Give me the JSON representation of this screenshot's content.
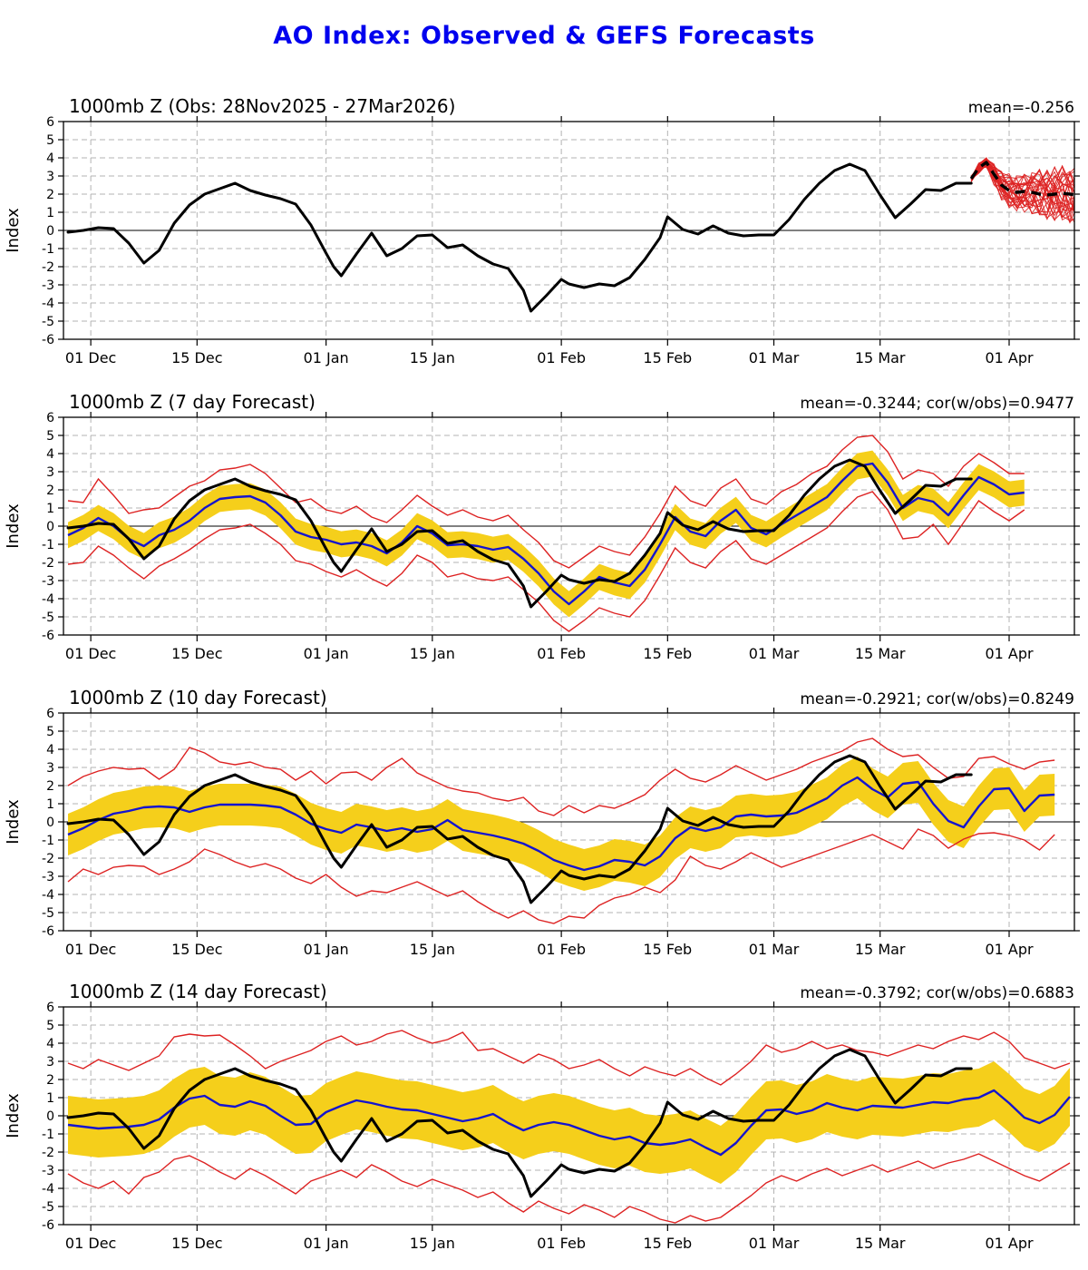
{
  "page_title": "AO Index: Observed & GEFS Forecasts",
  "colors": {
    "title": "#0000EE",
    "observed_line": "#000000",
    "ensemble_member_line": "#DD2222",
    "ensemble_mean_dashed": "#000000",
    "forecast_mean_line": "#1414CF",
    "envelope_line": "#DD2222",
    "spread_band_fill": "#F5CF1B",
    "grid": "#B3B3B3",
    "axis": "#000000"
  },
  "axes": {
    "y": {
      "label": "Index",
      "min": -6,
      "max": 6,
      "tick_step": 1
    },
    "x": {
      "domain_days": [
        -0.6,
        132.6
      ],
      "ticks": [
        {
          "day": 3,
          "label": "01 Dec"
        },
        {
          "day": 17,
          "label": "15 Dec"
        },
        {
          "day": 34,
          "label": "01 Jan"
        },
        {
          "day": 48,
          "label": "15 Jan"
        },
        {
          "day": 65,
          "label": "01 Feb"
        },
        {
          "day": 79,
          "label": "15 Feb"
        },
        {
          "day": 93,
          "label": "01 Mar"
        },
        {
          "day": 107,
          "label": "15 Mar"
        },
        {
          "day": 124,
          "label": "01 Apr"
        }
      ]
    }
  },
  "observed": {
    "days": [
      0,
      2,
      4,
      6,
      8,
      10,
      12,
      14,
      16,
      18,
      20,
      22,
      24,
      26,
      28,
      30,
      32,
      34,
      35,
      36,
      38,
      40,
      42,
      44,
      46,
      48,
      50,
      52,
      54,
      56,
      58,
      60,
      61,
      63,
      65,
      66,
      68,
      70,
      72,
      74,
      76,
      78,
      79,
      81,
      83,
      85,
      87,
      89,
      91,
      93,
      95,
      97,
      99,
      101,
      103,
      105,
      107,
      109,
      111,
      113,
      115,
      117,
      119
    ],
    "values": [
      -0.1,
      0.0,
      0.15,
      0.1,
      -0.7,
      -1.8,
      -1.1,
      0.4,
      1.4,
      2.0,
      2.3,
      2.6,
      2.2,
      1.95,
      1.75,
      1.45,
      0.3,
      -1.25,
      -2.0,
      -2.5,
      -1.3,
      -0.15,
      -1.4,
      -1.0,
      -0.3,
      -0.25,
      -0.95,
      -0.8,
      -1.4,
      -1.85,
      -2.1,
      -3.3,
      -4.45,
      -3.6,
      -2.7,
      -2.95,
      -3.15,
      -2.95,
      -3.05,
      -2.6,
      -1.6,
      -0.4,
      0.75,
      0.05,
      -0.2,
      0.25,
      -0.15,
      -0.3,
      -0.25,
      -0.25,
      0.6,
      1.7,
      2.6,
      3.3,
      3.65,
      3.3,
      1.95,
      0.7,
      1.45,
      2.25,
      2.2,
      2.6,
      2.6
    ]
  },
  "chart_data": [
    {
      "type": "line",
      "panel_id": "obs",
      "title": "1000mb Z (Obs: 28Nov2025 - 27Mar2026)",
      "annotation": "mean=-0.256",
      "show_observed": true,
      "ensemble": {
        "n_members": 30,
        "day_start": 119,
        "day_step": 1,
        "mean": [
          2.85,
          3.45,
          3.75,
          3.1,
          2.5,
          2.2,
          2.1,
          2.15,
          2.1,
          2.0,
          1.95,
          2.0,
          2.05,
          2.0,
          1.95,
          1.9,
          1.85
        ],
        "upper": [
          3.0,
          3.7,
          3.95,
          3.6,
          3.2,
          3.0,
          3.0,
          3.1,
          3.2,
          3.2,
          3.1,
          3.2,
          3.3,
          3.4,
          3.5,
          3.6,
          3.7
        ],
        "lower": [
          2.7,
          3.2,
          3.5,
          2.6,
          1.8,
          1.4,
          1.2,
          1.1,
          1.0,
          0.9,
          0.8,
          0.7,
          0.6,
          0.5,
          0.3,
          0.1,
          -0.3
        ]
      }
    },
    {
      "type": "line",
      "panel_id": "f7",
      "title": "1000mb Z (7 day Forecast)",
      "annotation": "mean=-0.3244; cor(w/obs)=0.9477",
      "show_observed": true,
      "forecast": {
        "day_start": 0,
        "day_step": 2,
        "yellow_halfwidth": 0.72,
        "mean": [
          -0.5,
          -0.1,
          0.45,
          0.0,
          -0.7,
          -1.1,
          -0.5,
          -0.2,
          0.3,
          1.0,
          1.5,
          1.6,
          1.65,
          1.3,
          0.6,
          -0.3,
          -0.6,
          -0.75,
          -1.0,
          -0.9,
          -1.1,
          -1.5,
          -0.9,
          0.0,
          -0.4,
          -1.05,
          -1.0,
          -1.1,
          -1.3,
          -1.15,
          -1.8,
          -2.6,
          -3.6,
          -4.3,
          -3.6,
          -2.8,
          -3.1,
          -3.3,
          -2.4,
          -1.0,
          0.5,
          -0.3,
          -0.55,
          0.3,
          0.9,
          -0.1,
          -0.45,
          0.1,
          0.6,
          1.1,
          1.6,
          2.5,
          3.3,
          3.45,
          2.4,
          1.0,
          1.55,
          1.35,
          0.6,
          1.7,
          2.7,
          2.3,
          1.75,
          1.85
        ],
        "red_upper": [
          1.4,
          1.3,
          2.6,
          1.7,
          0.7,
          0.9,
          1.0,
          1.6,
          2.2,
          2.5,
          3.1,
          3.2,
          3.4,
          2.9,
          2.1,
          1.3,
          1.5,
          0.9,
          0.7,
          1.1,
          0.5,
          0.2,
          0.9,
          1.7,
          1.1,
          0.6,
          0.9,
          0.5,
          0.3,
          0.6,
          -0.2,
          -0.9,
          -1.9,
          -2.3,
          -1.7,
          -1.1,
          -1.4,
          -1.6,
          -0.6,
          0.7,
          2.2,
          1.4,
          1.1,
          2.1,
          2.6,
          1.5,
          1.2,
          1.9,
          2.3,
          2.9,
          3.3,
          4.2,
          4.9,
          5.0,
          4.1,
          2.6,
          3.1,
          2.9,
          2.2,
          3.3,
          4.0,
          3.5,
          2.9,
          2.9
        ],
        "red_lower": [
          -2.1,
          -2.0,
          -1.1,
          -1.6,
          -2.3,
          -2.9,
          -2.2,
          -1.8,
          -1.3,
          -0.7,
          -0.2,
          -0.1,
          0.1,
          -0.4,
          -1.0,
          -1.9,
          -2.1,
          -2.5,
          -2.8,
          -2.4,
          -2.9,
          -3.3,
          -2.6,
          -1.6,
          -2.0,
          -2.8,
          -2.6,
          -2.9,
          -3.0,
          -2.8,
          -3.5,
          -4.2,
          -5.2,
          -5.8,
          -5.2,
          -4.5,
          -4.8,
          -5.0,
          -4.1,
          -2.7,
          -1.2,
          -2.0,
          -2.3,
          -1.4,
          -0.8,
          -1.8,
          -2.1,
          -1.6,
          -1.1,
          -0.6,
          -0.1,
          0.8,
          1.6,
          1.9,
          0.9,
          -0.7,
          -0.6,
          0.1,
          -1.0,
          0.2,
          1.4,
          0.8,
          0.3,
          0.9
        ]
      }
    },
    {
      "type": "line",
      "panel_id": "f10",
      "title": "1000mb Z (10 day Forecast)",
      "annotation": "mean=-0.2921; cor(w/obs)=0.8249",
      "show_observed": true,
      "forecast": {
        "day_start": 0,
        "day_step": 2,
        "yellow_halfwidth": 1.15,
        "mean": [
          -0.7,
          -0.35,
          0.1,
          0.45,
          0.6,
          0.8,
          0.85,
          0.8,
          0.55,
          0.8,
          0.95,
          0.95,
          0.95,
          0.9,
          0.8,
          0.4,
          -0.1,
          -0.4,
          -0.6,
          -0.15,
          -0.3,
          -0.5,
          -0.35,
          -0.55,
          -0.4,
          0.1,
          -0.45,
          -0.6,
          -0.75,
          -0.95,
          -1.2,
          -1.6,
          -2.1,
          -2.4,
          -2.65,
          -2.45,
          -2.1,
          -2.2,
          -2.4,
          -1.9,
          -0.9,
          -0.3,
          -0.5,
          -0.3,
          0.3,
          0.4,
          0.3,
          0.35,
          0.5,
          0.9,
          1.3,
          2.0,
          2.45,
          1.8,
          1.35,
          2.1,
          2.2,
          1.0,
          0.05,
          -0.3,
          0.85,
          1.8,
          1.85,
          0.6,
          1.45,
          1.5
        ],
        "red_upper": [
          2.0,
          2.5,
          2.8,
          3.0,
          2.9,
          2.95,
          2.35,
          2.9,
          4.1,
          3.8,
          3.3,
          3.15,
          3.3,
          3.0,
          2.9,
          2.3,
          2.8,
          2.1,
          2.7,
          2.75,
          2.3,
          3.0,
          3.5,
          2.7,
          2.3,
          1.9,
          1.7,
          1.6,
          1.3,
          1.15,
          1.35,
          0.6,
          0.35,
          0.9,
          0.5,
          0.9,
          0.75,
          1.1,
          1.5,
          2.3,
          2.9,
          2.4,
          2.2,
          2.6,
          3.1,
          2.7,
          2.3,
          2.6,
          2.9,
          3.3,
          3.6,
          3.9,
          4.4,
          4.6,
          4.0,
          3.6,
          3.7,
          3.0,
          2.4,
          2.5,
          3.5,
          3.6,
          3.2,
          2.9,
          3.3,
          3.4
        ],
        "red_lower": [
          -3.3,
          -2.6,
          -2.9,
          -2.5,
          -2.4,
          -2.45,
          -2.9,
          -2.6,
          -2.2,
          -1.5,
          -1.8,
          -2.2,
          -2.5,
          -2.3,
          -2.6,
          -3.1,
          -3.4,
          -2.9,
          -3.6,
          -4.1,
          -3.8,
          -3.9,
          -3.6,
          -3.3,
          -3.7,
          -4.1,
          -3.8,
          -4.4,
          -4.9,
          -5.3,
          -4.9,
          -5.4,
          -5.6,
          -5.2,
          -5.3,
          -4.6,
          -4.2,
          -4.0,
          -3.6,
          -3.9,
          -3.2,
          -1.9,
          -2.4,
          -2.6,
          -2.2,
          -1.7,
          -2.1,
          -2.5,
          -2.2,
          -1.9,
          -1.6,
          -1.3,
          -1.0,
          -0.7,
          -1.1,
          -1.5,
          -0.4,
          -0.75,
          -1.45,
          -0.95,
          -0.65,
          -0.6,
          -0.75,
          -1.0,
          -1.55,
          -0.7
        ]
      }
    },
    {
      "type": "line",
      "panel_id": "f14",
      "title": "1000mb Z (14 day Forecast)",
      "annotation": "mean=-0.3792; cor(w/obs)=0.6883",
      "show_observed": true,
      "forecast": {
        "day_start": 0,
        "day_step": 2,
        "yellow_halfwidth": 1.6,
        "mean": [
          -0.5,
          -0.6,
          -0.7,
          -0.65,
          -0.6,
          -0.5,
          -0.2,
          0.45,
          0.95,
          1.1,
          0.6,
          0.5,
          0.8,
          0.55,
          0.0,
          -0.5,
          -0.45,
          0.2,
          0.55,
          0.85,
          0.7,
          0.5,
          0.35,
          0.3,
          0.1,
          -0.1,
          -0.3,
          -0.15,
          0.1,
          -0.4,
          -0.8,
          -0.5,
          -0.35,
          -0.5,
          -0.8,
          -1.1,
          -1.3,
          -1.15,
          -1.5,
          -1.6,
          -1.5,
          -1.3,
          -1.75,
          -2.15,
          -1.5,
          -0.55,
          0.3,
          0.35,
          0.1,
          0.3,
          0.7,
          0.45,
          0.3,
          0.55,
          0.5,
          0.45,
          0.6,
          0.75,
          0.7,
          0.9,
          1.0,
          1.4,
          0.7,
          -0.1,
          -0.4,
          0.05,
          1.05
        ],
        "red_upper": [
          2.9,
          2.6,
          3.1,
          2.8,
          2.5,
          2.9,
          3.3,
          4.35,
          4.5,
          4.4,
          4.45,
          3.9,
          3.3,
          2.6,
          3.0,
          3.3,
          3.6,
          4.1,
          4.4,
          3.9,
          4.1,
          4.5,
          4.7,
          4.3,
          4.0,
          4.2,
          4.6,
          3.6,
          3.7,
          3.3,
          2.9,
          3.4,
          3.1,
          2.6,
          2.8,
          3.1,
          2.6,
          2.2,
          2.7,
          2.4,
          2.2,
          2.6,
          2.1,
          1.7,
          2.3,
          3.0,
          3.9,
          3.5,
          3.7,
          4.1,
          3.7,
          3.9,
          3.6,
          3.5,
          3.3,
          3.6,
          3.9,
          3.7,
          4.1,
          4.4,
          4.2,
          4.6,
          4.1,
          3.2,
          2.9,
          2.6,
          2.9
        ],
        "red_lower": [
          -3.2,
          -3.7,
          -4.0,
          -3.6,
          -4.3,
          -3.4,
          -3.1,
          -2.4,
          -2.2,
          -2.6,
          -3.1,
          -3.5,
          -2.9,
          -3.3,
          -3.8,
          -4.3,
          -3.6,
          -3.3,
          -3.0,
          -3.4,
          -2.7,
          -3.1,
          -3.6,
          -3.9,
          -3.5,
          -3.8,
          -4.1,
          -4.5,
          -4.2,
          -4.8,
          -5.3,
          -4.7,
          -5.1,
          -5.4,
          -4.9,
          -5.2,
          -5.6,
          -5.0,
          -5.3,
          -5.7,
          -5.9,
          -5.5,
          -5.8,
          -5.6,
          -5.0,
          -4.4,
          -3.7,
          -3.3,
          -3.6,
          -3.2,
          -2.9,
          -3.3,
          -3.0,
          -2.7,
          -3.1,
          -2.8,
          -2.5,
          -2.9,
          -2.6,
          -2.4,
          -2.1,
          -2.5,
          -2.9,
          -3.3,
          -3.6,
          -3.1,
          -2.6
        ]
      }
    }
  ]
}
